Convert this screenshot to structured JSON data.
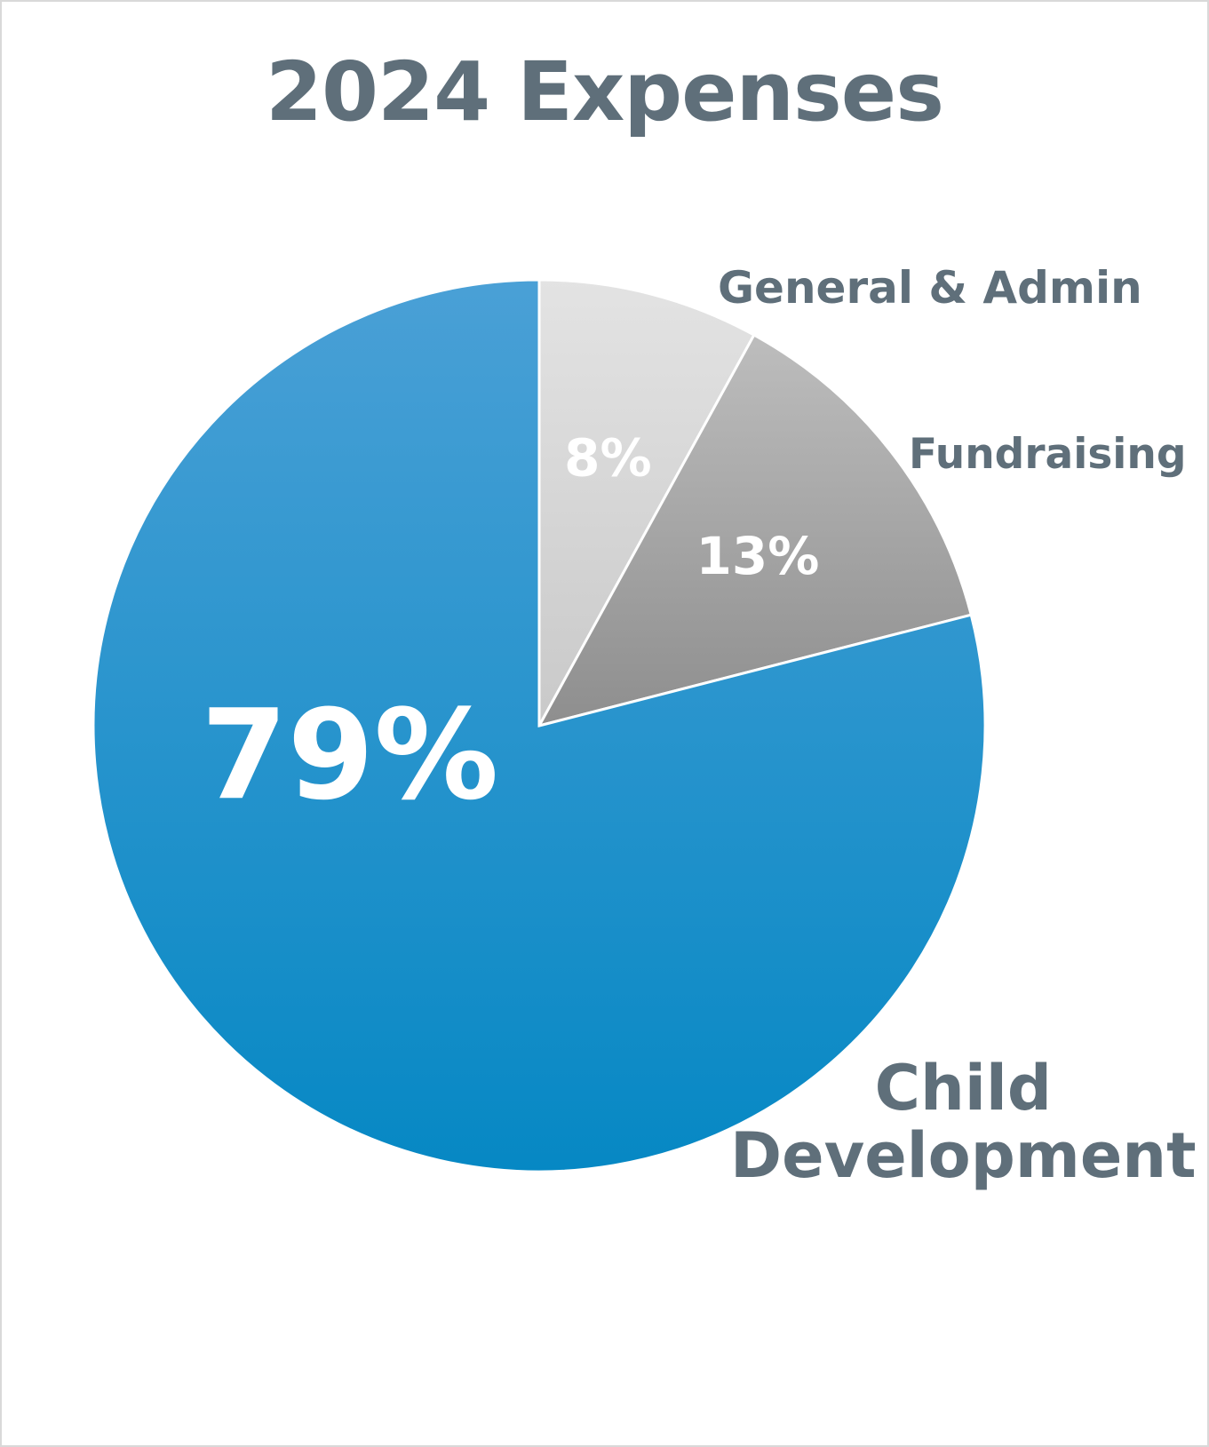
{
  "chart_data": {
    "type": "pie",
    "title": "2024 Expenses",
    "categories": [
      "General & Admin",
      "Fundraising",
      "Child Development"
    ],
    "values": [
      8,
      13,
      79
    ],
    "value_labels": [
      "8%",
      "13%",
      "79%"
    ],
    "label_lines": {
      "child_line1": "Child",
      "child_line2": "Development"
    },
    "colors": {
      "general_top": "#e3e3e3",
      "general_bottom": "#c9c9c9",
      "fundraising_top": "#bdbdbd",
      "fundraising_bottom": "#8e8e8e",
      "child_top": "#4aa0d6",
      "child_bottom": "#0688c4",
      "label_text": "#5f6f7a",
      "value_text": "#ffffff",
      "frame": "#d9d9d9"
    },
    "legend": "none"
  }
}
